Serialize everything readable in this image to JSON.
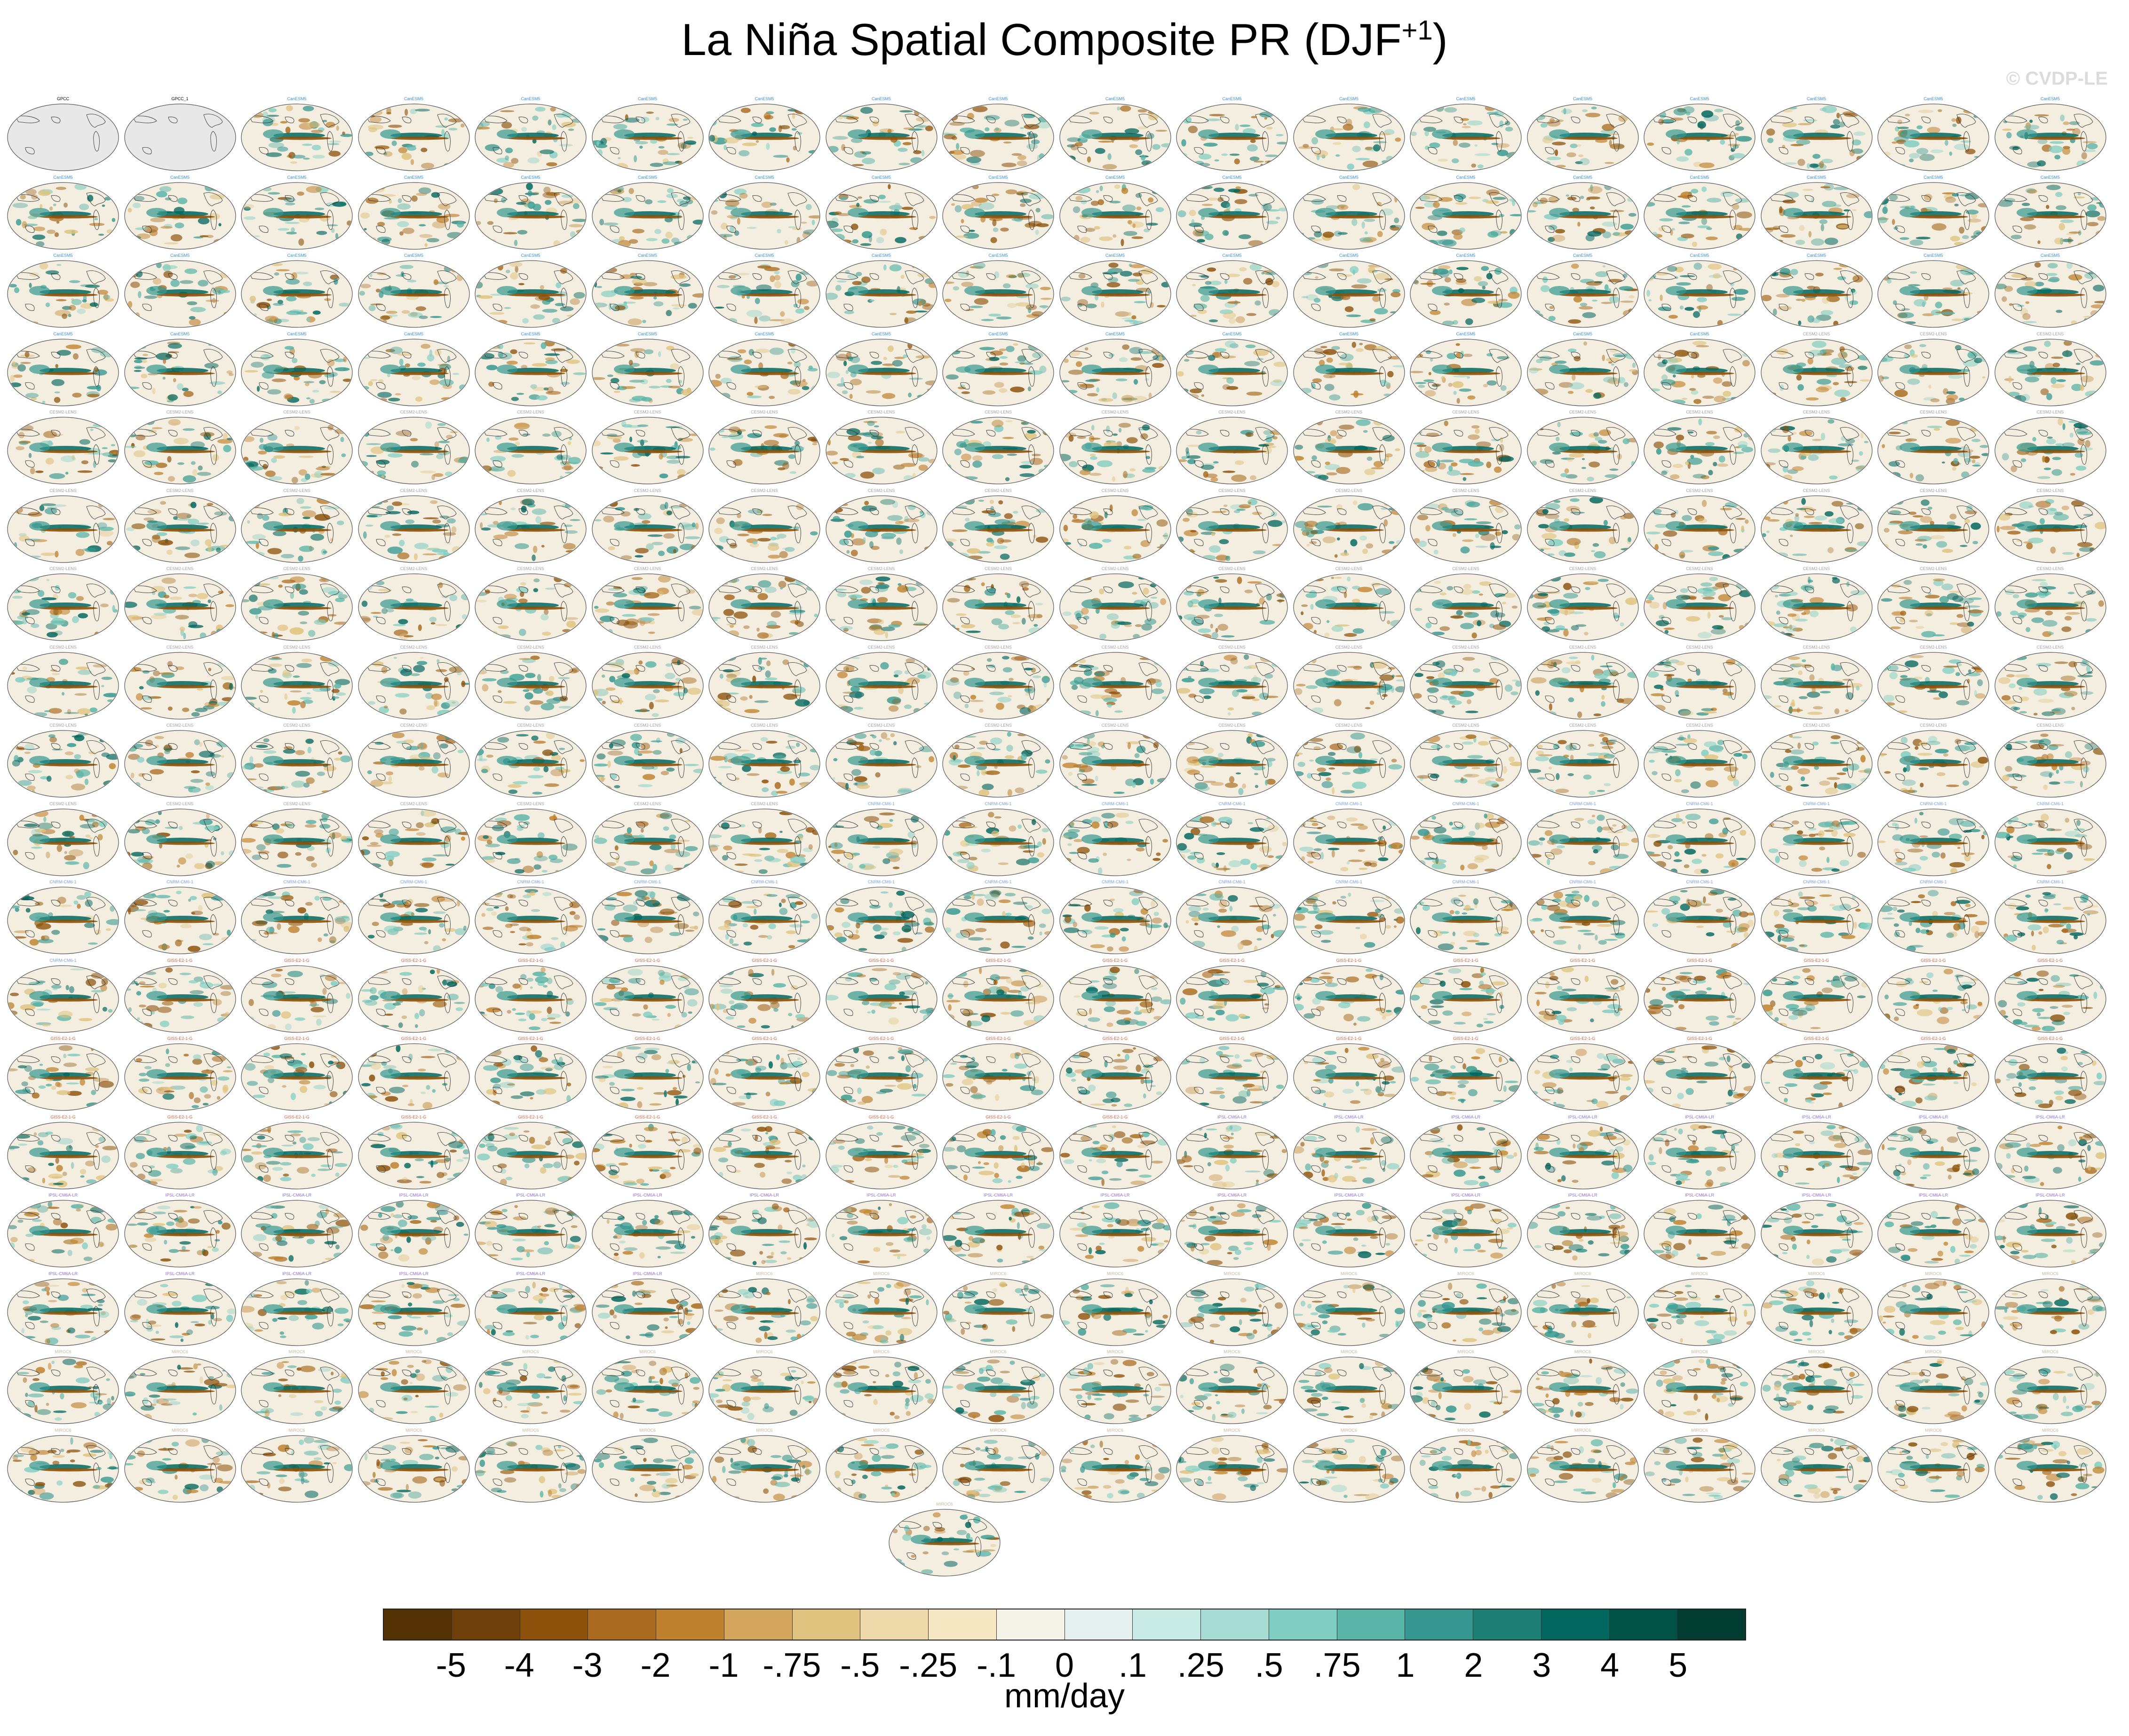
{
  "title": "La Niña Spatial Composite PR (DJF",
  "title_sup": "+1",
  "watermark": "© CVDP-LE",
  "chart_data": {
    "type": "heatmap",
    "title": "La Niña Spatial Composite PR (DJF+1)",
    "colorbar": {
      "labels": [
        "-5",
        "-4",
        "-3",
        "-2",
        "-1",
        "-.75",
        "-.5",
        "-.25",
        "-.1",
        "0",
        ".1",
        ".25",
        ".5",
        ".75",
        "1",
        "2",
        "3",
        "4",
        "5"
      ],
      "colors": [
        "#543005",
        "#6f3f0b",
        "#8c510a",
        "#a86b1f",
        "#bf812d",
        "#d4a55c",
        "#dfc27d",
        "#eed9ab",
        "#f6e8c3",
        "#f5f2e8",
        "#e6f1ef",
        "#c7eae5",
        "#a6dcd4",
        "#80cdc1",
        "#5ab4a8",
        "#35978f",
        "#1e8075",
        "#01665e",
        "#005146",
        "#003c30"
      ],
      "units": "mm/day"
    },
    "panels": {
      "rows": 18,
      "cols": 18,
      "extra_panel": true,
      "observations": [
        "GPCC",
        "GPCC_1"
      ],
      "groups": [
        {
          "name": "CanESM5",
          "color": "#3a8fd6",
          "count": 67
        },
        {
          "name": "CESM2-LENS",
          "color": "#a0a0a0",
          "count": 100
        },
        {
          "name": "CNRM-CM6-1",
          "color": "#7aa3d6",
          "count": 30
        },
        {
          "name": "GISS-E2-1-G",
          "color": "#d0603a",
          "count": 45
        },
        {
          "name": "IPSL-CM6A-LR",
          "color": "#8a6fd6",
          "count": 32
        },
        {
          "name": "MIROC6",
          "color": "#c8b898",
          "count": 49
        }
      ]
    }
  }
}
